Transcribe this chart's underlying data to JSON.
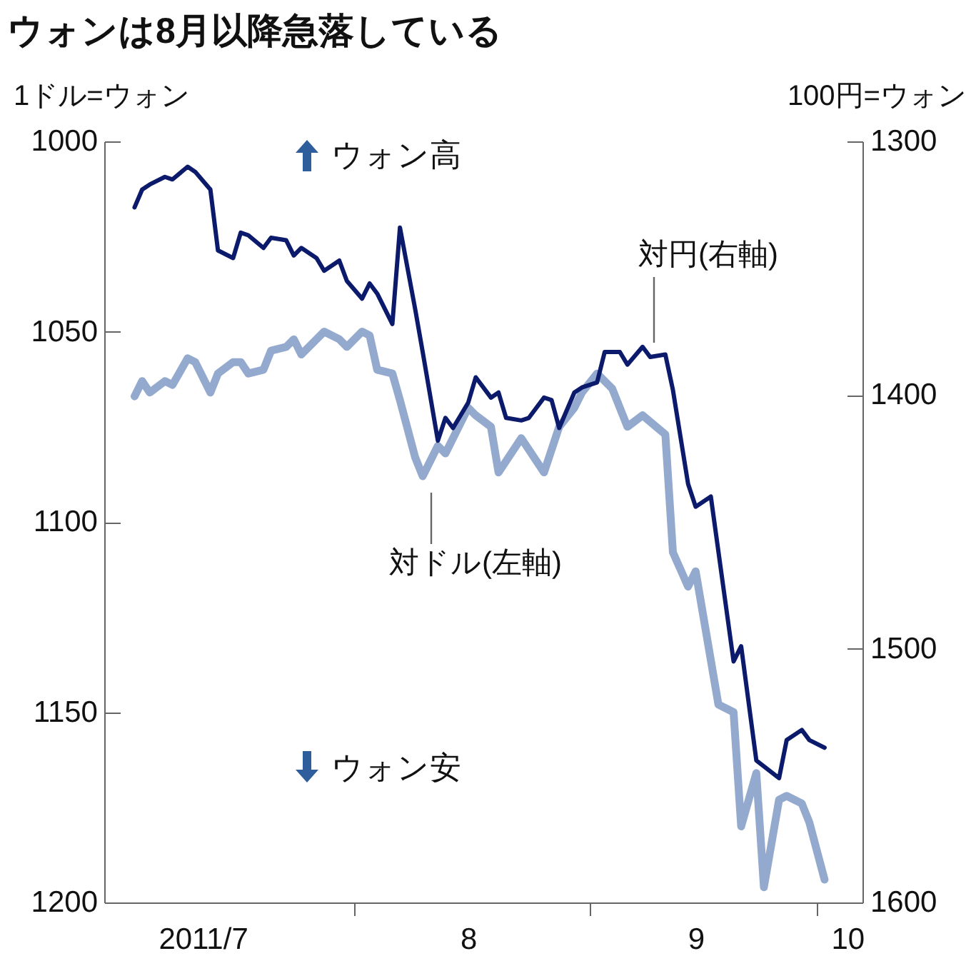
{
  "chart_data": {
    "type": "line",
    "title": "ウォンは8月以降急落している",
    "ylabel": "1ドル=ウォン",
    "y2label": "100円=ウォン",
    "annotations": [
      "ウォン高",
      "ウォン安"
    ],
    "xlim": [
      "2011-06-29",
      "2011-10-07"
    ],
    "xticks": [
      {
        "value": "2011-07-12",
        "label": "2011/7"
      },
      {
        "value": "2011-08-01",
        "label": null
      },
      {
        "value": "2011-08-16",
        "label": "8"
      },
      {
        "value": "2011-09-01",
        "label": null
      },
      {
        "value": "2011-09-15",
        "label": "9"
      },
      {
        "value": "2011-10-01",
        "label": null
      },
      {
        "value": "2011-10-05",
        "label": "10"
      }
    ],
    "ylim": [
      1200,
      1000
    ],
    "yticks": [
      1000,
      1050,
      1100,
      1150,
      1200
    ],
    "y2lim": [
      1600,
      1300
    ],
    "y2ticks": [
      1300,
      1400,
      1500,
      1600
    ],
    "grid": false,
    "series": [
      {
        "name": "対ドル(左軸)",
        "color": "#93a9cd",
        "x": [
          "2011-07-03",
          "2011-07-04",
          "2011-07-05",
          "2011-07-07",
          "2011-07-08",
          "2011-07-10",
          "2011-07-11",
          "2011-07-13",
          "2011-07-14",
          "2011-07-16",
          "2011-07-17",
          "2011-07-18",
          "2011-07-20",
          "2011-07-21",
          "2011-07-23",
          "2011-07-24",
          "2011-07-25",
          "2011-07-27",
          "2011-07-28",
          "2011-07-30",
          "2011-07-31",
          "2011-08-02",
          "2011-08-03",
          "2011-08-04",
          "2011-08-06",
          "2011-08-07",
          "2011-08-09",
          "2011-08-10",
          "2011-08-12",
          "2011-08-13",
          "2011-08-14",
          "2011-08-16",
          "2011-08-17",
          "2011-08-19",
          "2011-08-20",
          "2011-08-23",
          "2011-08-26",
          "2011-08-28",
          "2011-08-30",
          "2011-08-31",
          "2011-09-02",
          "2011-09-04",
          "2011-09-06",
          "2011-09-08",
          "2011-09-11",
          "2011-09-12",
          "2011-09-14",
          "2011-09-15",
          "2011-09-18",
          "2011-09-20",
          "2011-09-21",
          "2011-09-23",
          "2011-09-24",
          "2011-09-26",
          "2011-09-27",
          "2011-09-29",
          "2011-09-30",
          "2011-10-02"
        ],
        "values": [
          1067,
          1063,
          1066,
          1063,
          1064,
          1057,
          1058,
          1066,
          1061,
          1058,
          1058,
          1061,
          1060,
          1055,
          1054,
          1052,
          1056,
          1052,
          1050,
          1052,
          1054,
          1050,
          1051,
          1060,
          1061,
          1068,
          1083,
          1088,
          1080,
          1082,
          1078,
          1070,
          1072,
          1075,
          1087,
          1078,
          1087,
          1075,
          1070,
          1066,
          1061,
          1065,
          1075,
          1072,
          1077,
          1108,
          1117,
          1113,
          1148,
          1150,
          1180,
          1166,
          1196,
          1173,
          1172,
          1174,
          1179,
          1194
        ]
      },
      {
        "name": "対円(右軸)",
        "color": "#0c1a6b",
        "axis": "y2",
        "x": [
          "2011-07-03",
          "2011-07-04",
          "2011-07-05",
          "2011-07-07",
          "2011-07-08",
          "2011-07-10",
          "2011-07-11",
          "2011-07-13",
          "2011-07-14",
          "2011-07-16",
          "2011-07-17",
          "2011-07-18",
          "2011-07-20",
          "2011-07-21",
          "2011-07-23",
          "2011-07-24",
          "2011-07-25",
          "2011-07-27",
          "2011-07-28",
          "2011-07-30",
          "2011-07-31",
          "2011-08-02",
          "2011-08-03",
          "2011-08-04",
          "2011-08-06",
          "2011-08-07",
          "2011-08-09",
          "2011-08-10",
          "2011-08-12",
          "2011-08-13",
          "2011-08-14",
          "2011-08-16",
          "2011-08-17",
          "2011-08-19",
          "2011-08-20",
          "2011-08-21",
          "2011-08-23",
          "2011-08-24",
          "2011-08-26",
          "2011-08-27",
          "2011-08-28",
          "2011-08-30",
          "2011-08-31",
          "2011-09-02",
          "2011-09-03",
          "2011-09-05",
          "2011-09-06",
          "2011-09-08",
          "2011-09-09",
          "2011-09-11",
          "2011-09-12",
          "2011-09-14",
          "2011-09-15",
          "2011-09-17",
          "2011-09-20",
          "2011-09-21",
          "2011-09-23",
          "2011-09-26",
          "2011-09-27",
          "2011-09-29",
          "2011-09-30",
          "2011-10-02"
        ],
        "values": [
          1326,
          1319,
          1317,
          1314,
          1315,
          1310,
          1312,
          1319,
          1343,
          1346,
          1336,
          1337,
          1342,
          1338,
          1339,
          1345,
          1342,
          1346,
          1351,
          1347,
          1355,
          1362,
          1356,
          1360,
          1372,
          1334,
          1366,
          1383,
          1418,
          1409,
          1413,
          1403,
          1393,
          1401,
          1399,
          1409,
          1410,
          1409,
          1401,
          1402,
          1413,
          1399,
          1397,
          1395,
          1383,
          1383,
          1388,
          1381,
          1385,
          1384,
          1398,
          1435,
          1444,
          1440,
          1505,
          1499,
          1544,
          1551,
          1536,
          1532,
          1536,
          1539
        ]
      }
    ]
  }
}
